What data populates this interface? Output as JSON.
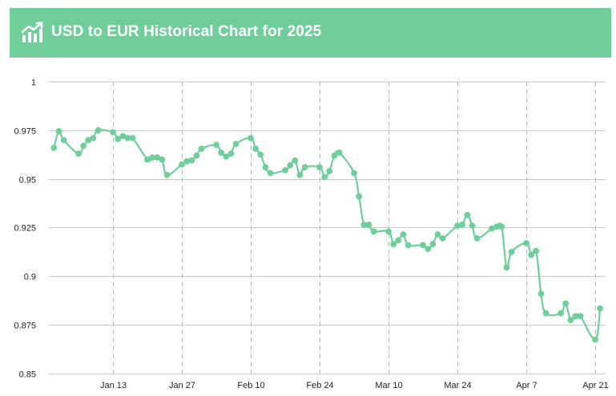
{
  "header": {
    "title": "USD to EUR Historical Chart for 2025",
    "icon": "chart-trend-icon",
    "background_color": "#6fce9a",
    "text_color": "#ffffff"
  },
  "chart_data": {
    "type": "line",
    "title": "USD to EUR Historical Chart for 2025",
    "xlabel": "",
    "ylabel": "",
    "line_color": "#6fce9a",
    "grid": true,
    "ylim": [
      0.85,
      1.0
    ],
    "y_ticks": [
      {
        "value": 1.0,
        "label": "1"
      },
      {
        "value": 0.975,
        "label": "0.975"
      },
      {
        "value": 0.95,
        "label": "0.95"
      },
      {
        "value": 0.925,
        "label": "0.925"
      },
      {
        "value": 0.9,
        "label": "0.9"
      },
      {
        "value": 0.875,
        "label": "0.875"
      },
      {
        "value": 0.85,
        "label": "0.85"
      }
    ],
    "x_ticks": [
      {
        "x": "2025-01-13",
        "label": "Jan 13"
      },
      {
        "x": "2025-01-27",
        "label": "Jan 27"
      },
      {
        "x": "2025-02-10",
        "label": "Feb 10"
      },
      {
        "x": "2025-02-24",
        "label": "Feb 24"
      },
      {
        "x": "2025-03-10",
        "label": "Mar 10"
      },
      {
        "x": "2025-03-24",
        "label": "Mar 24"
      },
      {
        "x": "2025-04-07",
        "label": "Apr 7"
      },
      {
        "x": "2025-04-21",
        "label": "Apr 21"
      }
    ],
    "series": [
      {
        "name": "",
        "x": [
          "2025-01-01",
          "2025-01-02",
          "2025-01-03",
          "2025-01-06",
          "2025-01-07",
          "2025-01-08",
          "2025-01-09",
          "2025-01-10",
          "2025-01-13",
          "2025-01-14",
          "2025-01-15",
          "2025-01-16",
          "2025-01-17",
          "2025-01-20",
          "2025-01-21",
          "2025-01-22",
          "2025-01-23",
          "2025-01-24",
          "2025-01-27",
          "2025-01-28",
          "2025-01-29",
          "2025-01-30",
          "2025-01-31",
          "2025-02-03",
          "2025-02-04",
          "2025-02-05",
          "2025-02-06",
          "2025-02-07",
          "2025-02-10",
          "2025-02-11",
          "2025-02-12",
          "2025-02-13",
          "2025-02-14",
          "2025-02-17",
          "2025-02-18",
          "2025-02-19",
          "2025-02-20",
          "2025-02-21",
          "2025-02-24",
          "2025-02-25",
          "2025-02-26",
          "2025-02-27",
          "2025-02-28",
          "2025-03-03",
          "2025-03-04",
          "2025-03-05",
          "2025-03-06",
          "2025-03-07",
          "2025-03-10",
          "2025-03-11",
          "2025-03-12",
          "2025-03-13",
          "2025-03-14",
          "2025-03-17",
          "2025-03-18",
          "2025-03-19",
          "2025-03-20",
          "2025-03-21",
          "2025-03-24",
          "2025-03-25",
          "2025-03-26",
          "2025-03-27",
          "2025-03-28",
          "2025-03-31",
          "2025-04-01",
          "2025-04-02",
          "2025-04-03",
          "2025-04-04",
          "2025-04-07",
          "2025-04-08",
          "2025-04-09",
          "2025-04-10",
          "2025-04-11",
          "2025-04-14",
          "2025-04-15",
          "2025-04-16",
          "2025-04-17",
          "2025-04-18",
          "2025-04-21",
          "2025-04-22"
        ],
        "y": [
          0.966,
          0.9745,
          0.97,
          0.963,
          0.967,
          0.97,
          0.971,
          0.975,
          0.974,
          0.9705,
          0.972,
          0.971,
          0.971,
          0.96,
          0.961,
          0.961,
          0.96,
          0.952,
          0.9575,
          0.959,
          0.9595,
          0.962,
          0.9655,
          0.9675,
          0.9635,
          0.9615,
          0.963,
          0.968,
          0.971,
          0.9655,
          0.9625,
          0.956,
          0.953,
          0.9545,
          0.957,
          0.9595,
          0.952,
          0.956,
          0.956,
          0.951,
          0.954,
          0.962,
          0.9635,
          0.953,
          0.941,
          0.9265,
          0.9265,
          0.923,
          0.923,
          0.9165,
          0.9185,
          0.9215,
          0.916,
          0.916,
          0.914,
          0.9165,
          0.9215,
          0.9195,
          0.926,
          0.9265,
          0.9315,
          0.926,
          0.9195,
          0.9245,
          0.9255,
          0.9255,
          0.9045,
          0.9125,
          0.917,
          0.911,
          0.913,
          0.891,
          0.881,
          0.881,
          0.886,
          0.8775,
          0.8795,
          0.8795,
          0.8675,
          0.8835
        ]
      }
    ]
  }
}
